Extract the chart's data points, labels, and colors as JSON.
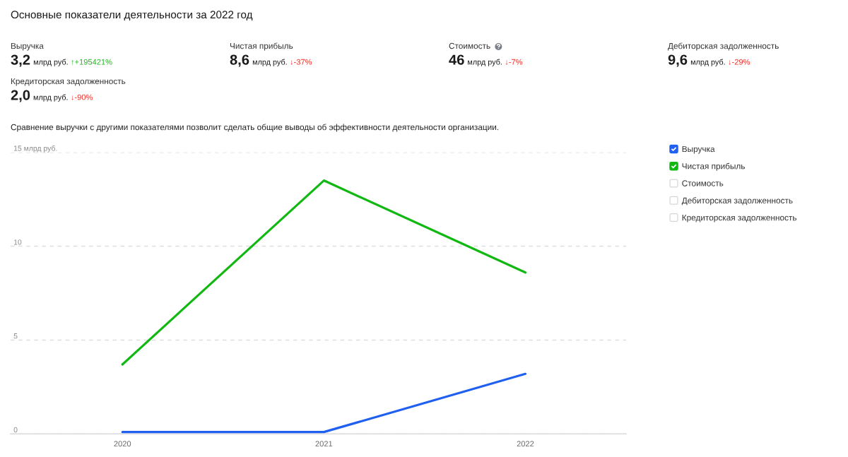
{
  "chart_data": [
    {
      "type": "other",
      "title": "Основные показатели деятельности за 2022 год",
      "categories": [
        "Выручка"
      ],
      "series": [
        {
          "values": [
            3.2
          ],
          "value_labels": [
            "3,2"
          ],
          "color": "#1a1a1a"
        },
        {
          "values": [
            195421
          ],
          "value_labels": [
            "↑+195421%"
          ],
          "color": "#22b422"
        }
      ],
      "annotations": [
        "млрд руб."
      ]
    },
    {
      "type": "other",
      "categories": [
        "Чистая прибыль"
      ],
      "series": [
        {
          "values": [
            8.6
          ],
          "value_labels": [
            "8,6"
          ],
          "color": "#1a1a1a"
        },
        {
          "values": [
            -37
          ],
          "value_labels": [
            "↓-37%"
          ],
          "color": "#f0302a"
        }
      ],
      "annotations": [
        "млрд руб."
      ]
    },
    {
      "type": "other",
      "categories": [
        "Стоимость"
      ],
      "series": [
        {
          "values": [
            46
          ],
          "value_labels": [
            "46"
          ],
          "color": "#1a1a1a"
        },
        {
          "values": [
            -7
          ],
          "value_labels": [
            "↓-7%"
          ],
          "color": "#f0302a"
        }
      ],
      "annotations": [
        "млрд руб."
      ]
    },
    {
      "type": "other",
      "categories": [
        "Дебиторская задолженность"
      ],
      "series": [
        {
          "values": [
            9.6
          ],
          "value_labels": [
            "9,6"
          ],
          "color": "#1a1a1a"
        },
        {
          "values": [
            -29
          ],
          "value_labels": [
            "↓-29%"
          ],
          "color": "#f0302a"
        }
      ],
      "annotations": [
        "млрд руб."
      ]
    },
    {
      "type": "other",
      "categories": [
        "Кредиторская задолженность"
      ],
      "series": [
        {
          "values": [
            2.0
          ],
          "value_labels": [
            "2,0"
          ],
          "color": "#1a1a1a"
        },
        {
          "values": [
            -90
          ],
          "value_labels": [
            "↓-90%"
          ],
          "color": "#f0302a"
        }
      ],
      "annotations": [
        "млрд руб."
      ]
    },
    {
      "type": "line",
      "subtitle": "Сравнение выручки с другими показателями позволит сделать общие выводы об эффективности деятельности организации.",
      "categories": [
        "2020",
        "2021",
        "2022"
      ],
      "series": [
        {
          "name": "Выручка",
          "color": "#2060f0",
          "values": [
            0.1,
            0.1,
            3.2
          ]
        },
        {
          "name": "Чистая прибыль",
          "color": "#12b812",
          "values": [
            3.7,
            13.5,
            8.6
          ]
        },
        {
          "name": "Стоимость",
          "values": [
            null,
            null,
            null
          ]
        },
        {
          "name": "Дебиторская задолженность",
          "values": [
            null,
            null,
            null
          ]
        },
        {
          "name": "Кредиторская задолженность",
          "values": [
            null,
            null,
            null
          ]
        }
      ],
      "ylim": [
        0,
        15
      ],
      "yticks": [
        0,
        5,
        10,
        {
          "value": 15,
          "label": "15 млрд руб."
        }
      ],
      "grid": "y",
      "legend": "right"
    }
  ]
}
